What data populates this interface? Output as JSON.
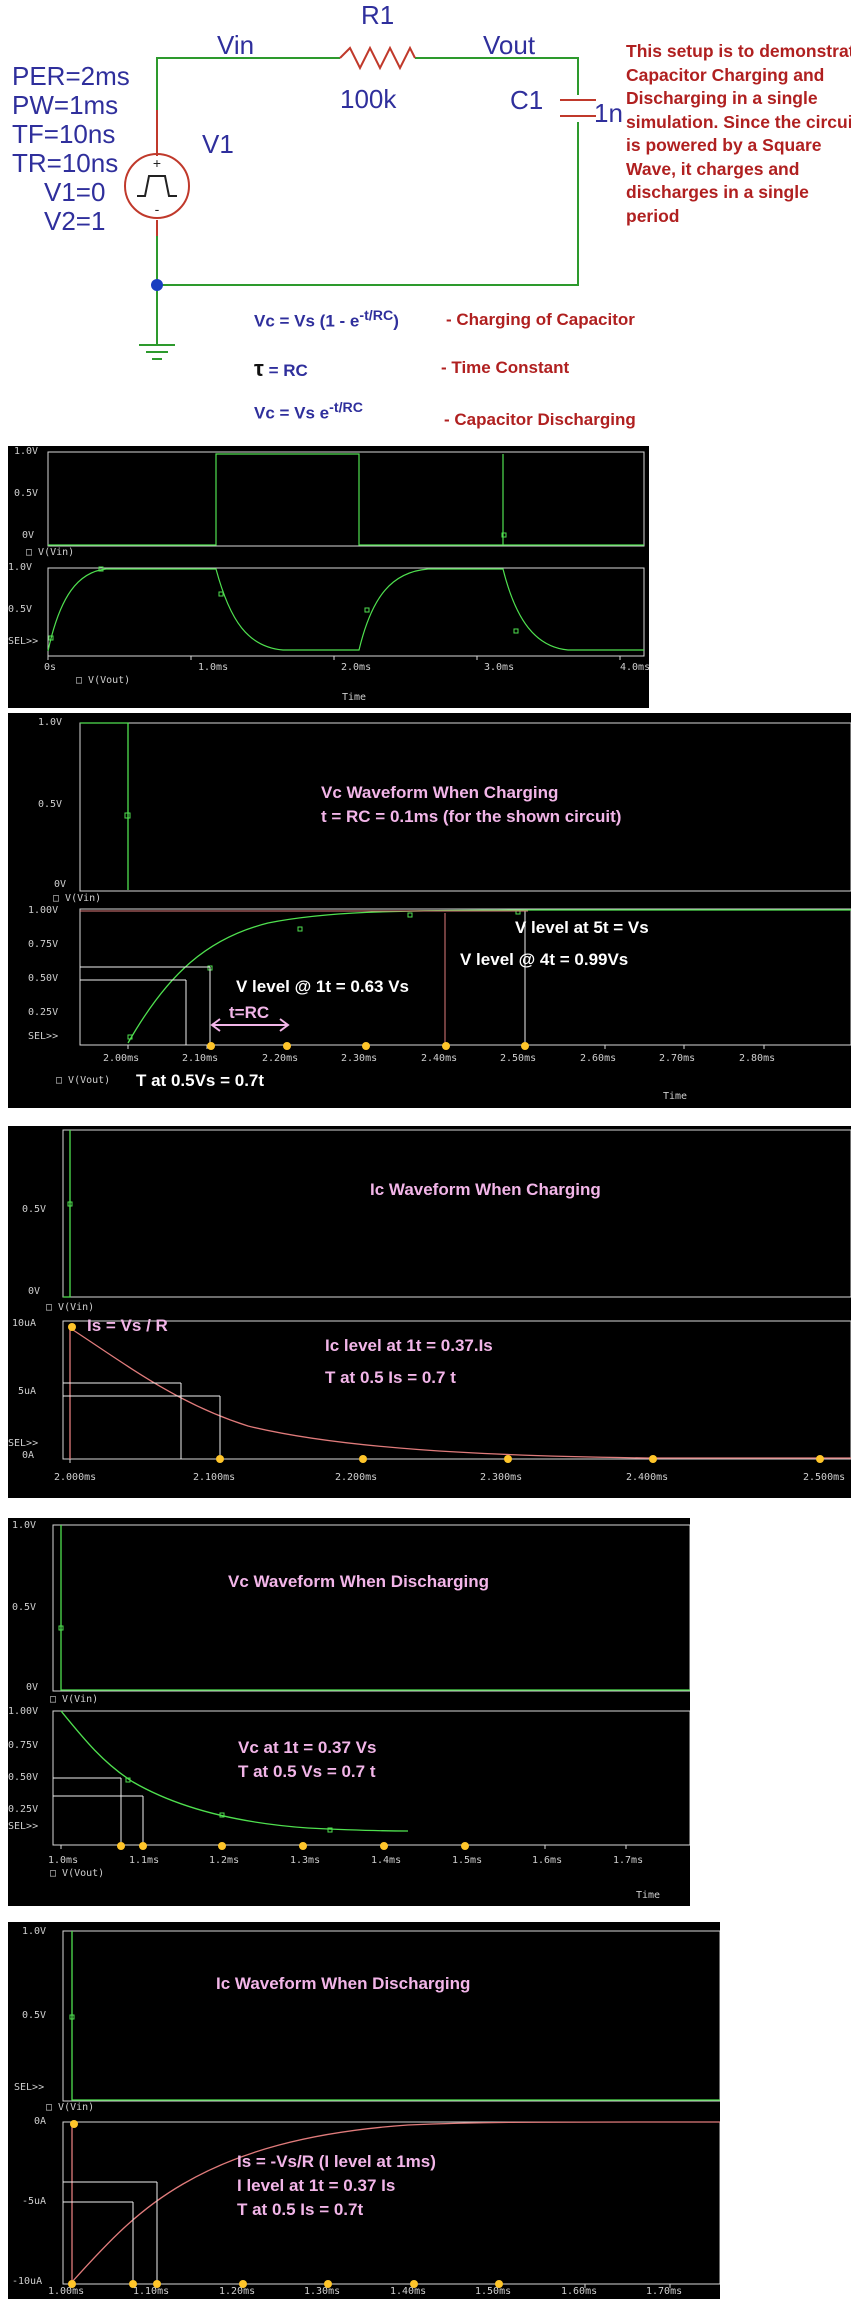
{
  "schematic": {
    "params": [
      "PER=2ms",
      "PW=1ms",
      "TF=10ns",
      "TR=10ns",
      "V1=0",
      "V2=1"
    ],
    "source_name": "V1",
    "vin": "Vin",
    "r1": "R1",
    "r_value": "100k",
    "vout": "Vout",
    "c1": "C1",
    "c_value": "1n",
    "note": "This setup is to demonstrate Capacitor Charging and Discharging in a single simulation. Since the circuit is powered by a Square Wave, it charges and discharges in a single period",
    "eq1_left": "Vc = Vs (1 - e",
    "eq1_sup": "-t/RC",
    "eq1_close": ")",
    "eq1_desc": "- Charging of Capacitor",
    "eq2_sym": "τ",
    "eq2_left": "= RC",
    "eq2_desc": "- Time Constant",
    "eq3_left": "Vc = Vs e",
    "eq3_sup": "-t/RC",
    "eq3_desc": "- Capacitor Discharging"
  },
  "plots": {
    "p1": {
      "top_ticks": [
        "1.0V",
        "0.5V",
        "0V"
      ],
      "top_trace": "V(Vin)",
      "bot_ticks": [
        "1.0V",
        "0.5V",
        "SEL>>"
      ],
      "bot_trace": "V(Vout)",
      "x_ticks": [
        "0s",
        "1.0ms",
        "2.0ms",
        "3.0ms",
        "4.0ms"
      ],
      "x_label": "Time"
    },
    "p2": {
      "top_ticks": [
        "1.0V",
        "0.5V",
        "0V"
      ],
      "top_trace": "V(Vin)",
      "bot_ticks": [
        "1.00V",
        "0.75V",
        "0.50V",
        "0.25V",
        "SEL>>"
      ],
      "bot_trace": "V(Vout)",
      "x_ticks": [
        "2.00ms",
        "2.10ms",
        "2.20ms",
        "2.30ms",
        "2.40ms",
        "2.50ms",
        "2.60ms",
        "2.70ms",
        "2.80ms"
      ],
      "x_label": "Time",
      "title": "Vc Waveform When Charging",
      "subtitle": "t = RC = 0.1ms (for the shown circuit)",
      "a_5t": "V level at 5t = Vs",
      "a_4t": "V level @ 4t = 0.99Vs",
      "a_1t": "V level @ 1t = 0.63 Vs",
      "a_rc": "t=RC",
      "a_half": "T at 0.5Vs = 0.7t"
    },
    "p3": {
      "top_ticks": [
        "0.5V",
        "0V"
      ],
      "top_trace": "V(Vin)",
      "bot_ticks": [
        "10uA",
        "5uA",
        "SEL>>",
        "0A"
      ],
      "x_ticks": [
        "2.000ms",
        "2.100ms",
        "2.200ms",
        "2.300ms",
        "2.400ms",
        "2.500ms"
      ],
      "title": "Ic Waveform When Charging",
      "a_is": "Is = Vs / R",
      "a_1t": "Ic level at 1t = 0.37.Is",
      "a_half": "T at 0.5 Is = 0.7 t"
    },
    "p4": {
      "top_ticks": [
        "1.0V",
        "0.5V",
        "0V"
      ],
      "top_trace": "V(Vin)",
      "bot_ticks": [
        "1.00V",
        "0.75V",
        "0.50V",
        "0.25V",
        "SEL>>"
      ],
      "bot_trace": "V(Vout)",
      "x_ticks": [
        "1.0ms",
        "1.1ms",
        "1.2ms",
        "1.3ms",
        "1.4ms",
        "1.5ms",
        "1.6ms",
        "1.7ms"
      ],
      "x_label": "Time",
      "title": "Vc Waveform When Discharging",
      "a_1t": "Vc at 1t = 0.37 Vs",
      "a_half": "T at 0.5 Vs = 0.7 t"
    },
    "p5": {
      "top_ticks": [
        "1.0V",
        "0.5V",
        "SEL>>"
      ],
      "top_trace": "V(Vin)",
      "bot_ticks": [
        "0A",
        "-5uA",
        "-10uA"
      ],
      "x_ticks": [
        "1.00ms",
        "1.10ms",
        "1.20ms",
        "1.30ms",
        "1.40ms",
        "1.50ms",
        "1.60ms",
        "1.70ms"
      ],
      "title": "Ic Waveform When Discharging",
      "a_is": "Is = -Vs/R (I level at 1ms)",
      "a_1t": "I level at 1t = 0.37 Is",
      "a_half": "T at 0.5 Is = 0.7t"
    }
  }
}
